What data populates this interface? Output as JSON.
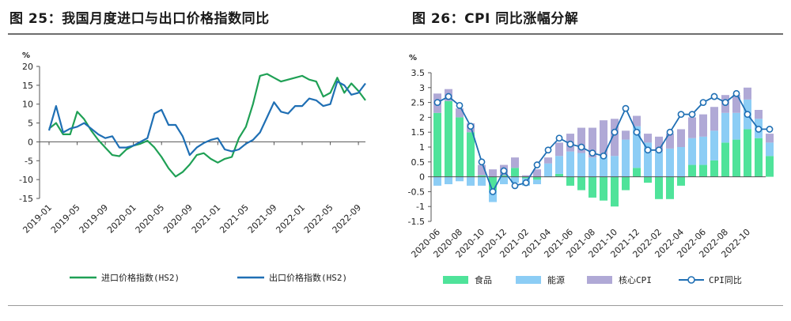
{
  "titles": {
    "left": "图 25：我国月度进口与出口价格指数同比",
    "right": "图 26：CPI 同比涨幅分解"
  },
  "chart_data": [
    {
      "type": "line",
      "unit": "%",
      "ylim": [
        -15,
        20
      ],
      "yticks": [
        20,
        15,
        10,
        5,
        0,
        -5,
        -10,
        -15
      ],
      "xlabels": [
        "2019-01",
        "2019-05",
        "2019-09",
        "2020-01",
        "2020-05",
        "2020-09",
        "2021-01",
        "2021-05",
        "2021-09",
        "2022-01",
        "2022-05",
        "2022-09"
      ],
      "x": [
        "2019-01",
        "2019-02",
        "2019-03",
        "2019-04",
        "2019-05",
        "2019-06",
        "2019-07",
        "2019-08",
        "2019-09",
        "2019-10",
        "2019-11",
        "2019-12",
        "2020-01",
        "2020-02",
        "2020-03",
        "2020-04",
        "2020-05",
        "2020-06",
        "2020-07",
        "2020-08",
        "2020-09",
        "2020-10",
        "2020-11",
        "2020-12",
        "2021-01",
        "2021-02",
        "2021-03",
        "2021-04",
        "2021-05",
        "2021-06",
        "2021-07",
        "2021-08",
        "2021-09",
        "2021-10",
        "2021-11",
        "2021-12",
        "2022-01",
        "2022-02",
        "2022-03",
        "2022-04",
        "2022-05",
        "2022-06",
        "2022-07",
        "2022-08",
        "2022-09",
        "2022-10"
      ],
      "legend_position": "bottom",
      "series": [
        {
          "name": "进口价格指数(HS2)",
          "color": "#1fa055",
          "values": [
            3.5,
            5.0,
            2.0,
            2.0,
            8.0,
            6.0,
            3.0,
            0.5,
            -1.5,
            -3.5,
            -3.8,
            -2.0,
            -1.0,
            -0.5,
            0.3,
            -1.5,
            -4.0,
            -7.0,
            -9.2,
            -8.0,
            -6.0,
            -3.5,
            -3.0,
            -4.5,
            -5.5,
            -4.5,
            -4.0,
            1.0,
            4.0,
            10.0,
            17.5,
            18.0,
            17.0,
            16.0,
            16.5,
            17.0,
            17.5,
            16.5,
            16.0,
            12.0,
            13.0,
            17.0,
            13.0,
            15.5,
            13.5,
            11.0
          ]
        },
        {
          "name": "出口价格指数(HS2)",
          "color": "#1f6fb4",
          "values": [
            3.0,
            9.5,
            2.5,
            3.5,
            4.0,
            5.0,
            3.5,
            2.0,
            1.0,
            1.5,
            -1.5,
            -1.5,
            -1.0,
            0.0,
            1.0,
            7.5,
            8.5,
            4.5,
            4.5,
            1.5,
            -3.5,
            -1.5,
            -0.3,
            0.5,
            1.0,
            -2.0,
            -2.5,
            -2.0,
            -0.5,
            0.5,
            2.5,
            6.5,
            10.5,
            8.0,
            7.5,
            9.5,
            9.5,
            11.5,
            11.0,
            9.5,
            10.0,
            16.0,
            15.0,
            12.5,
            13.0,
            15.5
          ]
        }
      ]
    },
    {
      "type": "bar",
      "stacked": true,
      "unit": "%",
      "ylim": [
        -1.5,
        3.5
      ],
      "yticks": [
        "3.5",
        "3",
        "2.5",
        "2",
        "1.5",
        "1",
        "0.5",
        "0",
        "-0.5",
        "-1",
        "-1.5"
      ],
      "xlabels": [
        "2020-06",
        "2020-08",
        "2020-10",
        "2020-12",
        "2021-02",
        "2021-04",
        "2021-06",
        "2021-08",
        "2021-10",
        "2021-12",
        "2022-02",
        "2022-04",
        "2022-06",
        "2022-08",
        "2022-10"
      ],
      "legend_position": "bottom",
      "series": [
        {
          "name": "食品",
          "color": "#4fe39a",
          "values": [
            2.15,
            2.55,
            2.0,
            1.5,
            0.05,
            -0.45,
            0.05,
            0.3,
            -0.05,
            -0.1,
            0.0,
            0.1,
            -0.3,
            -0.45,
            -0.7,
            -0.8,
            -1.0,
            -0.45,
            0.3,
            -0.2,
            -0.75,
            -0.75,
            -0.3,
            0.4,
            0.4,
            0.55,
            1.15,
            1.25,
            1.6,
            1.3,
            0.7
          ]
        },
        {
          "name": "能源",
          "color": "#8ccdf5",
          "values": [
            -0.3,
            -0.25,
            -0.15,
            -0.3,
            -0.3,
            -0.4,
            -0.25,
            -0.2,
            -0.25,
            -0.15,
            0.45,
            0.6,
            0.85,
            0.8,
            0.65,
            0.7,
            0.7,
            1.25,
            1.4,
            1.15,
            0.85,
            0.95,
            1.0,
            0.9,
            0.95,
            1.0,
            1.0,
            0.9,
            1.0,
            0.65,
            0.45
          ]
        },
        {
          "name": "核心CPI",
          "color": "#b0a9d6",
          "values": [
            0.65,
            0.4,
            0.3,
            0.3,
            0.35,
            0.25,
            0.35,
            0.35,
            0.05,
            0.25,
            0.2,
            0.45,
            0.6,
            0.85,
            1.0,
            1.2,
            1.25,
            0.3,
            0.35,
            0.3,
            0.5,
            0.5,
            0.6,
            0.7,
            0.75,
            0.8,
            0.6,
            0.6,
            0.4,
            0.3,
            0.3
          ]
        },
        {
          "name": "CPI同比",
          "color": "#1f6fb4",
          "kind": "line",
          "values": [
            2.5,
            2.7,
            2.4,
            1.7,
            0.5,
            -0.5,
            0.2,
            -0.3,
            -0.2,
            0.4,
            0.9,
            1.3,
            1.1,
            1.0,
            0.8,
            0.7,
            1.5,
            2.3,
            1.5,
            0.9,
            0.9,
            1.5,
            2.1,
            2.1,
            2.5,
            2.7,
            2.5,
            2.8,
            2.1,
            1.6,
            1.6
          ]
        }
      ]
    }
  ]
}
